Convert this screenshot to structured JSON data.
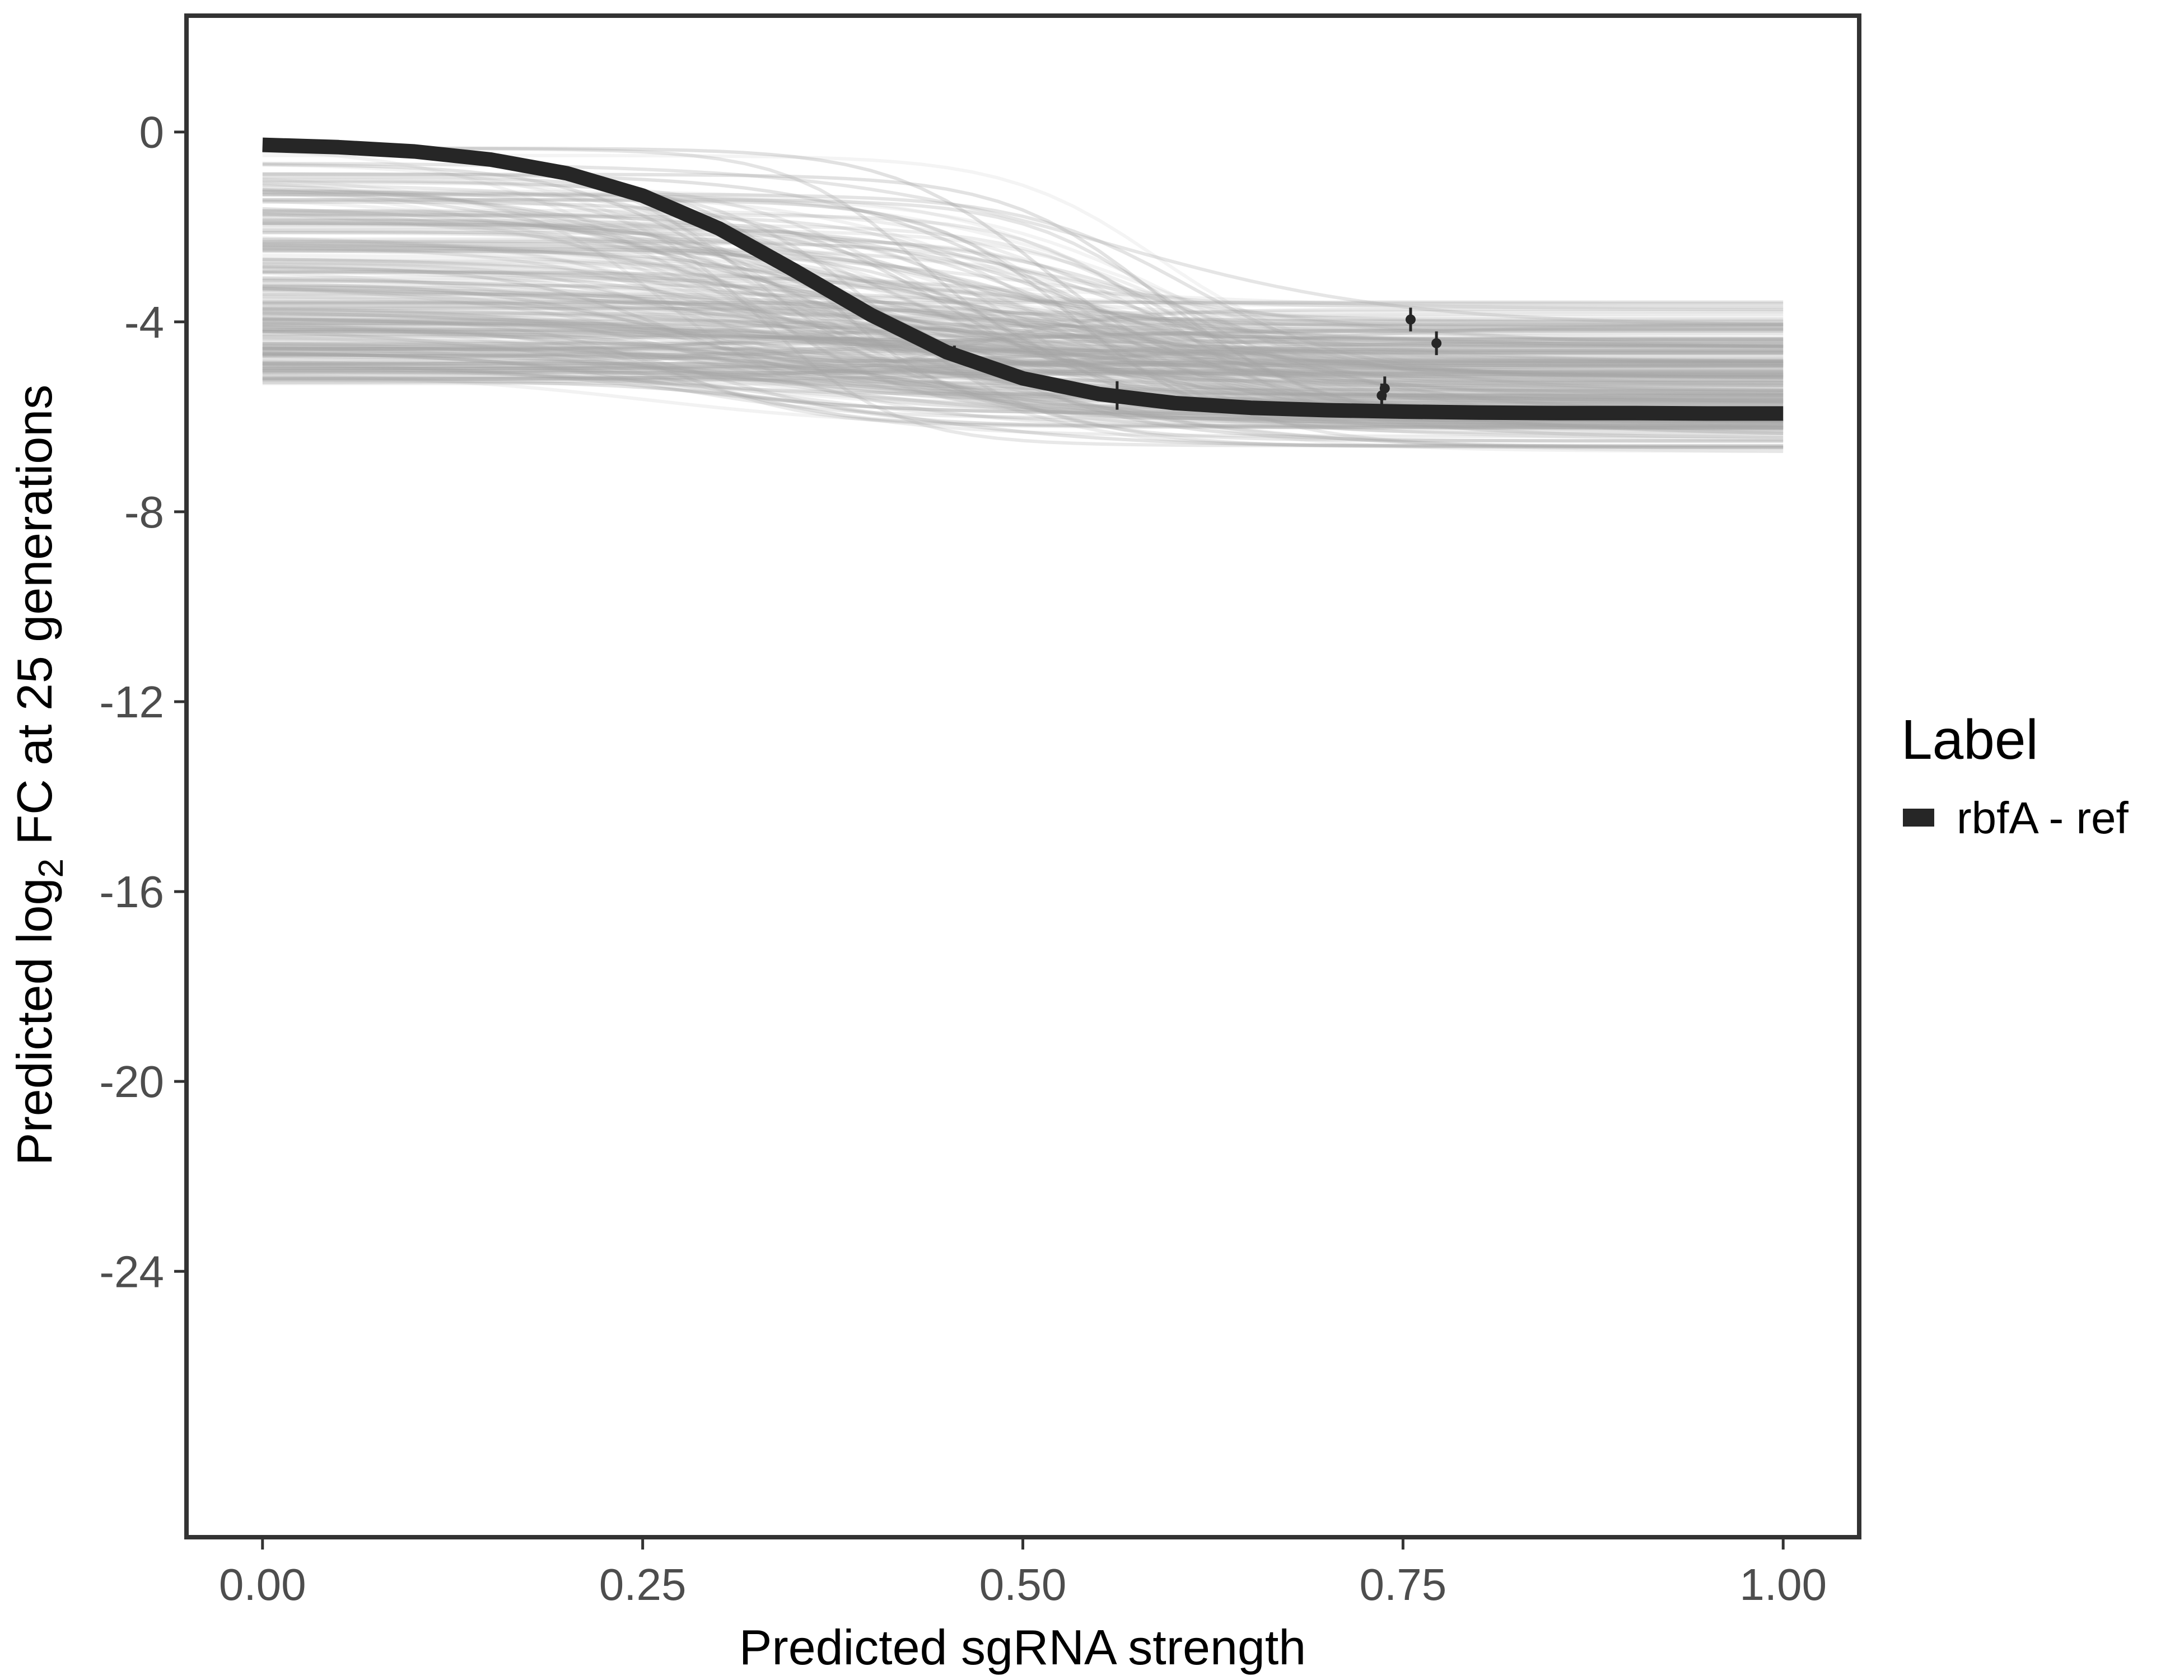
{
  "chart_data": {
    "type": "line",
    "xlabel": "Predicted sgRNA strength",
    "ylabel_prefix": "Predicted  log",
    "ylabel_subscript": "2",
    "ylabel_suffix": " FC at 25 generations",
    "xlim": [
      -0.05,
      1.05
    ],
    "ylim": [
      -29.6,
      2.45
    ],
    "x_ticks": [
      0.0,
      0.25,
      0.5,
      0.75,
      1.0
    ],
    "x_tick_labels": [
      "0.00",
      "0.25",
      "0.50",
      "0.75",
      "1.00"
    ],
    "y_ticks": [
      0,
      -4,
      -8,
      -12,
      -16,
      -20,
      -24
    ],
    "y_tick_labels": [
      "0",
      "-4",
      "-8",
      "-12",
      "-16",
      "-20",
      "-24"
    ],
    "grid": false,
    "legend": {
      "title": "Label",
      "placement": "right",
      "entries": [
        {
          "label": "rbfA - ref",
          "color": "#262626"
        }
      ]
    },
    "series": [
      {
        "name": "rbfA - ref",
        "kind": "fitted-curve",
        "color": "#262626",
        "x": [
          0.0,
          0.05,
          0.1,
          0.15,
          0.2,
          0.25,
          0.3,
          0.35,
          0.4,
          0.45,
          0.5,
          0.55,
          0.6,
          0.65,
          0.7,
          0.75,
          0.8,
          0.85,
          0.9,
          0.95,
          1.0
        ],
        "y": [
          -0.27,
          -0.32,
          -0.41,
          -0.58,
          -0.87,
          -1.34,
          -2.03,
          -2.92,
          -3.85,
          -4.64,
          -5.19,
          -5.52,
          -5.71,
          -5.81,
          -5.86,
          -5.89,
          -5.91,
          -5.92,
          -5.92,
          -5.93,
          -5.93
        ]
      },
      {
        "name": "",
        "kind": "observations",
        "color": "#262626",
        "points": [
          {
            "x": 0.455,
            "y": -4.65,
            "err": 0.15
          },
          {
            "x": 0.562,
            "y": -5.55,
            "err": 0.3
          },
          {
            "x": 0.736,
            "y": -5.55,
            "err": 0.25
          },
          {
            "x": 0.738,
            "y": -5.4,
            "err": 0.25
          },
          {
            "x": 0.755,
            "y": -3.95,
            "err": 0.25
          },
          {
            "x": 0.772,
            "y": -4.45,
            "err": 0.25
          }
        ]
      }
    ],
    "posterior_draws": {
      "color": "#a6a6a6",
      "count": 240,
      "y_at_zero_range": [
        -5.3,
        -0.15
      ],
      "y_at_one_range": [
        -7.7,
        -3.1
      ],
      "midpoint_range": [
        0.25,
        0.62
      ]
    }
  }
}
